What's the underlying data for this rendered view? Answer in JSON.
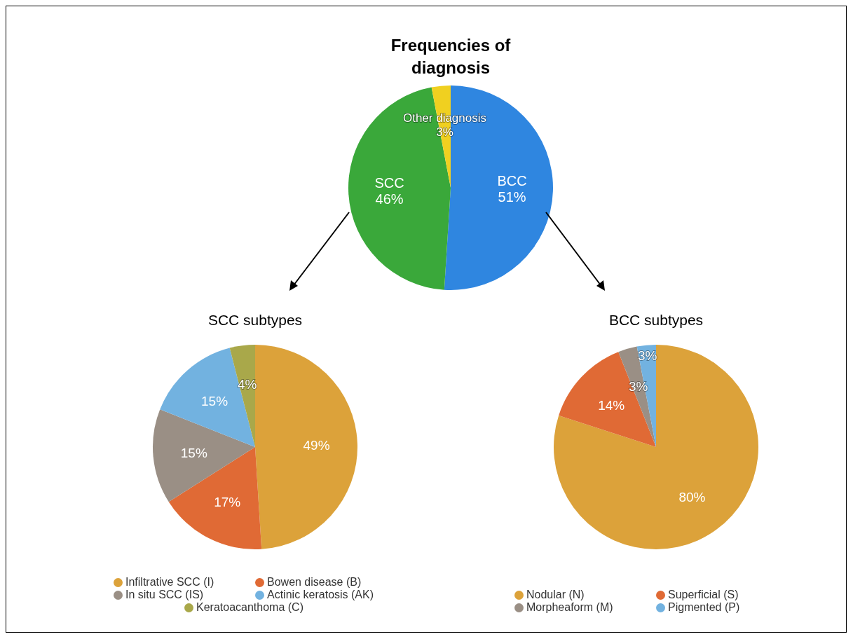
{
  "chart_data": [
    {
      "type": "pie",
      "title": "Frequencies of diagnosis",
      "categories": [
        "BCC",
        "SCC",
        "Other diagnosis"
      ],
      "values": [
        51,
        46,
        3
      ],
      "colors": [
        "#2f86e0",
        "#3aa83a",
        "#f0d020"
      ],
      "value_labels": [
        "51%",
        "46%",
        "3%"
      ],
      "legend": false
    },
    {
      "type": "pie",
      "title": "SCC subtypes",
      "categories": [
        "Infiltrative SCC (I)",
        "Bowen disease (B)",
        "In situ SCC (IS)",
        "Actinic keratosis (AK)",
        "Keratoacanthoma (C)"
      ],
      "values": [
        49,
        17,
        15,
        15,
        4
      ],
      "colors": [
        "#dca23a",
        "#e06a35",
        "#9a8f85",
        "#72b2e0",
        "#a9a84a"
      ],
      "value_labels": [
        "49%",
        "17%",
        "15%",
        "15%",
        "4%"
      ],
      "legend": "bottom"
    },
    {
      "type": "pie",
      "title": "BCC subtypes",
      "categories": [
        "Nodular (N)",
        "Superficial (S)",
        "Morpheaform (M)",
        "Pigmented (P)"
      ],
      "values": [
        80,
        14,
        3,
        3
      ],
      "colors": [
        "#dca23a",
        "#e06a35",
        "#9a8f85",
        "#72b2e0"
      ],
      "value_labels": [
        "80%",
        "14%",
        "3%",
        "3%"
      ],
      "legend": "bottom"
    }
  ]
}
